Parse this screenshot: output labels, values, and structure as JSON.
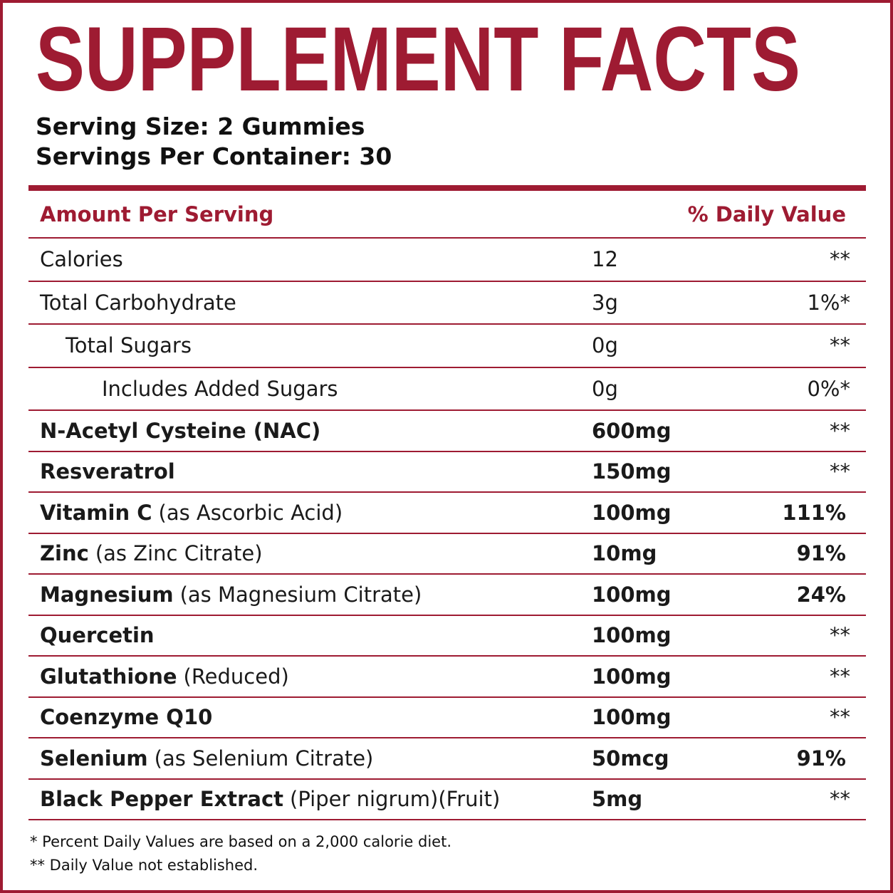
{
  "header": {
    "title": "SUPPLEMENT FACTS",
    "serving_size": "Serving Size: 2 Gummies",
    "servings_per_container": "Servings Per Container: 30"
  },
  "table": {
    "header": {
      "amount": "Amount Per Serving",
      "daily_value": "% Daily Value"
    },
    "rows": [
      {
        "name": "Calories",
        "amount": "12",
        "dv": "**"
      },
      {
        "name": "Total Carbohydrate",
        "amount": "3g",
        "dv": "1%*"
      },
      {
        "name": "Total Sugars",
        "amount": "0g",
        "dv": "**"
      },
      {
        "name": "Includes Added Sugars",
        "amount": "0g",
        "dv": "0%*"
      },
      {
        "name": "N-Acetyl Cysteine (NAC)",
        "amount": "600mg",
        "dv": "**"
      },
      {
        "name": "Resveratrol",
        "amount": "150mg",
        "dv": "**"
      },
      {
        "name": "Vitamin C",
        "detail": "(as Ascorbic Acid)",
        "amount": "100mg",
        "dv": "111%"
      },
      {
        "name": "Zinc",
        "detail": "(as Zinc Citrate)",
        "amount": "10mg",
        "dv": "91%"
      },
      {
        "name": "Magnesium",
        "detail": "(as Magnesium Citrate)",
        "amount": "100mg",
        "dv": "24%"
      },
      {
        "name": "Quercetin",
        "amount": "100mg",
        "dv": "**"
      },
      {
        "name": "Glutathione",
        "detail": "(Reduced)",
        "amount": "100mg",
        "dv": "**"
      },
      {
        "name": "Coenzyme Q10",
        "amount": "100mg",
        "dv": "**"
      },
      {
        "name": "Selenium",
        "detail": "(as Selenium Citrate)",
        "amount": "50mcg",
        "dv": "91%"
      },
      {
        "name": "Black Pepper Extract",
        "detail": "(Piper nigrum)(Fruit)",
        "amount": "5mg",
        "dv": "**"
      }
    ]
  },
  "footnotes": [
    "* Percent Daily Values are based on a 2,000 calorie diet.",
    "** Daily Value not established."
  ]
}
